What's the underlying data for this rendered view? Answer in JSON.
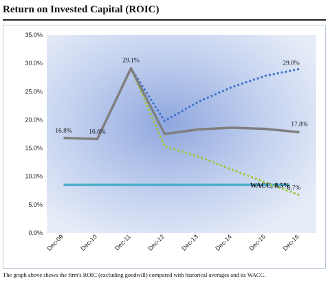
{
  "page": {
    "title": "Return on Invested Capital (ROIC)",
    "caption": "The graph above shows the firm's ROIC (excluding goodwill) compared with historical averages and its WACC."
  },
  "chart_data": {
    "type": "line",
    "title": "",
    "xlabel": "",
    "ylabel": "",
    "categories": [
      "Dec-09",
      "Dec-10",
      "Dec-11",
      "Dec-12",
      "Dec-13",
      "Dec-14",
      "Dec-15",
      "Dec-16"
    ],
    "yticks": [
      "0.0%",
      "5.0%",
      "10.0%",
      "15.0%",
      "20.0%",
      "25.0%",
      "30.0%",
      "35.0%"
    ],
    "ylim": [
      0,
      35
    ],
    "grid": false,
    "legend": "none",
    "series": [
      {
        "key": "roic",
        "style": "solid",
        "color": "#7f7f7f",
        "values": [
          16.8,
          16.6,
          29.1,
          17.5,
          18.3,
          18.6,
          18.4,
          17.8
        ]
      },
      {
        "key": "high",
        "style": "dotted",
        "color": "#3f73c8",
        "values": [
          16.8,
          16.6,
          29.1,
          19.8,
          23.2,
          25.8,
          27.8,
          29.0
        ]
      },
      {
        "key": "low",
        "style": "dotted",
        "color": "#9ec83c",
        "values": [
          16.8,
          16.6,
          29.1,
          15.3,
          13.5,
          11.2,
          8.9,
          6.7
        ]
      },
      {
        "key": "wacc",
        "style": "solid",
        "color": "#4aaecb",
        "values": [
          8.5,
          8.5,
          8.5,
          8.5,
          8.5,
          8.5,
          8.5,
          8.5
        ]
      }
    ],
    "annotations": [
      {
        "text": "16.8%",
        "series": "roic",
        "index": 0
      },
      {
        "text": "16.6%",
        "series": "roic",
        "index": 1
      },
      {
        "text": "29.1%",
        "series": "roic",
        "index": 2
      },
      {
        "text": "29.0%",
        "series": "high",
        "index": 7
      },
      {
        "text": "17.8%",
        "series": "roic",
        "index": 7
      },
      {
        "text": "6.7%",
        "series": "low",
        "index": 7
      },
      {
        "text": "WACC, 8.5%",
        "series": "wacc",
        "index": 7
      }
    ]
  }
}
